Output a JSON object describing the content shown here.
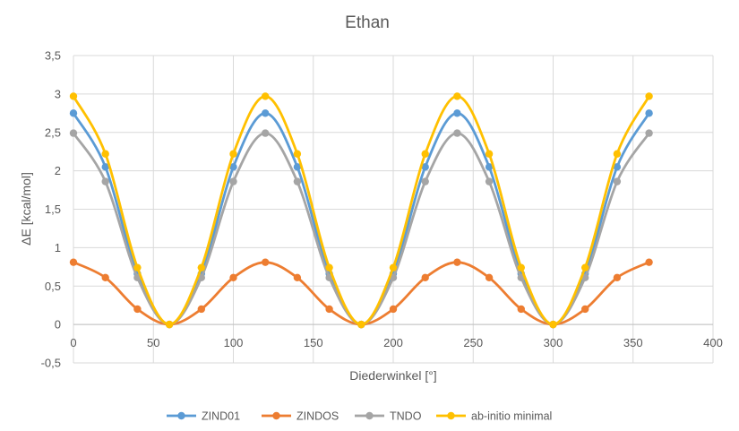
{
  "chart_data": {
    "type": "scatter",
    "title": "Ethan",
    "xlabel": "Diederwinkel [°]",
    "ylabel": "ΔE [kcal/mol]",
    "xlim": [
      0,
      400
    ],
    "ylim": [
      -0.5,
      3.5
    ],
    "xticks": [
      0,
      50,
      100,
      150,
      200,
      250,
      300,
      350,
      400
    ],
    "xtick_labels": [
      "0",
      "50",
      "100",
      "150",
      "200",
      "250",
      "300",
      "350",
      "400"
    ],
    "yticks": [
      -0.5,
      0,
      0.5,
      1,
      1.5,
      2,
      2.5,
      3,
      3.5
    ],
    "ytick_labels": [
      "-0,5",
      "0",
      "0,5",
      "1",
      "1,5",
      "2",
      "2,5",
      "3",
      "3,5"
    ],
    "grid": true,
    "legend_position": "bottom",
    "x": [
      0,
      20,
      40,
      60,
      80,
      100,
      120,
      140,
      160,
      180,
      200,
      220,
      240,
      260,
      280,
      300,
      320,
      340,
      360
    ],
    "series": [
      {
        "name": "ZIND01",
        "color": "#5B9BD5",
        "values": [
          2.75,
          2.05,
          0.66,
          0.0,
          0.66,
          2.05,
          2.75,
          2.05,
          0.66,
          0.0,
          0.66,
          2.05,
          2.75,
          2.05,
          0.66,
          0.0,
          0.66,
          2.05,
          2.75
        ]
      },
      {
        "name": "ZINDOS",
        "color": "#ED7D31",
        "values": [
          0.81,
          0.61,
          0.2,
          0.0,
          0.2,
          0.61,
          0.81,
          0.61,
          0.2,
          0.0,
          0.2,
          0.61,
          0.81,
          0.61,
          0.2,
          0.0,
          0.2,
          0.61,
          0.81
        ]
      },
      {
        "name": "TNDO",
        "color": "#A5A5A5",
        "values": [
          2.49,
          1.86,
          0.61,
          0.0,
          0.61,
          1.86,
          2.49,
          1.86,
          0.61,
          0.0,
          0.61,
          1.86,
          2.49,
          1.86,
          0.61,
          0.0,
          0.61,
          1.86,
          2.49
        ]
      },
      {
        "name": "ab-initio minimal",
        "color": "#FFC000",
        "values": [
          2.97,
          2.22,
          0.74,
          0.0,
          0.74,
          2.22,
          2.97,
          2.22,
          0.74,
          0.0,
          0.74,
          2.22,
          2.97,
          2.22,
          0.74,
          0.0,
          0.74,
          2.22,
          2.97
        ]
      }
    ]
  }
}
